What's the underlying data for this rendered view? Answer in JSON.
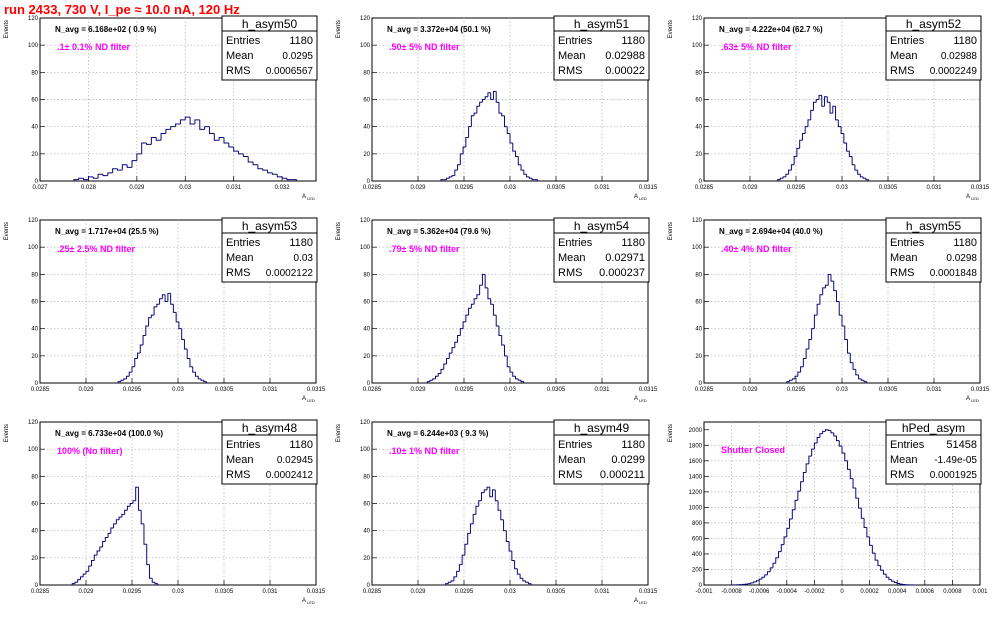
{
  "header": {
    "title": "run 2433,   730 V, I_pe ≈ 10.0 nA, 120 Hz",
    "title_color": "#ff0000"
  },
  "colors": {
    "hist": "#0a0a7a",
    "filter_label": "#ff00ff",
    "grid": "#b0b0b0"
  },
  "stat_labels": {
    "entries": "Entries",
    "mean": "Mean",
    "rms": "RMS"
  },
  "chart_data": [
    {
      "type": "histogram",
      "name": "h_asym50",
      "navg": "N_avg = 6.168e+02 ( 0.9 %)",
      "filter": ".1± 0.1% ND filter",
      "stats": {
        "entries": "1180",
        "mean": "0.0295",
        "rms": "0.0006567"
      },
      "xlabel": "A_LED",
      "ylabel": "Events",
      "xlim": [
        0.027,
        0.0327
      ],
      "ylim": [
        0,
        120
      ],
      "xticks": [
        "0.027",
        "0.028",
        "0.029",
        "0.03",
        "0.031",
        "0.032"
      ],
      "yticks": [
        "0",
        "20",
        "40",
        "60",
        "80",
        "100",
        "120"
      ],
      "grid": true,
      "legend": "top-right",
      "bins": {
        "start": 0.0277,
        "width": 0.0001,
        "values": [
          1,
          2,
          1,
          3,
          2,
          5,
          4,
          6,
          9,
          8,
          12,
          10,
          15,
          20,
          28,
          27,
          32,
          30,
          35,
          38,
          40,
          42,
          45,
          47,
          42,
          45,
          38,
          40,
          35,
          30,
          32,
          28,
          25,
          22,
          20,
          18,
          14,
          12,
          9,
          8,
          6,
          5,
          3,
          2,
          1,
          1
        ]
      }
    },
    {
      "type": "histogram",
      "name": "h_asym51",
      "navg": "N_avg = 3.372e+04 (50.1 %)",
      "filter": ".50± 5% ND filter",
      "stats": {
        "entries": "1180",
        "mean": "0.02988",
        "rms": "0.00022"
      },
      "xlabel": "A_LED",
      "ylabel": "Events",
      "xlim": [
        0.0285,
        0.0315
      ],
      "ylim": [
        0,
        120
      ],
      "xticks": [
        "0.0285",
        "0.029",
        "0.0295",
        "0.03",
        "0.0305",
        "0.031",
        "0.0315"
      ],
      "yticks": [
        "0",
        "20",
        "40",
        "60",
        "80",
        "100",
        "120"
      ],
      "grid": true,
      "legend": "top-right",
      "bins": {
        "start": 0.02925,
        "width": 3e-05,
        "values": [
          1,
          1,
          2,
          3,
          4,
          8,
          12,
          20,
          25,
          32,
          40,
          48,
          50,
          55,
          58,
          60,
          62,
          65,
          60,
          66,
          58,
          50,
          48,
          40,
          35,
          28,
          22,
          18,
          12,
          8,
          5,
          3,
          2,
          1,
          1
        ]
      }
    },
    {
      "type": "histogram",
      "name": "h_asym52",
      "navg": "N_avg = 4.222e+04 (62.7 %)",
      "filter": ".63± 5% ND filter",
      "stats": {
        "entries": "1180",
        "mean": "0.02988",
        "rms": "0.0002249"
      },
      "xlabel": "A_LED",
      "ylabel": "Events",
      "xlim": [
        0.0285,
        0.0315
      ],
      "ylim": [
        0,
        120
      ],
      "xticks": [
        "0.0285",
        "0.029",
        "0.0295",
        "0.03",
        "0.0305",
        "0.031",
        "0.0315"
      ],
      "yticks": [
        "0",
        "20",
        "40",
        "60",
        "80",
        "100",
        "120"
      ],
      "grid": true,
      "legend": "top-right",
      "bins": {
        "start": 0.0293,
        "width": 3e-05,
        "values": [
          1,
          2,
          3,
          5,
          8,
          12,
          18,
          24,
          30,
          35,
          40,
          45,
          52,
          58,
          60,
          63,
          55,
          62,
          58,
          50,
          55,
          45,
          40,
          35,
          28,
          22,
          18,
          12,
          8,
          5,
          3,
          2,
          1
        ]
      }
    },
    {
      "type": "histogram",
      "name": "h_asym53",
      "navg": "N_avg = 1.717e+04 (25.5 %)",
      "filter": ".25± 2.5% ND filter",
      "stats": {
        "entries": "1180",
        "mean": "0.03",
        "rms": "0.0002122"
      },
      "xlabel": "A_LED",
      "ylabel": "Events",
      "xlim": [
        0.0285,
        0.0315
      ],
      "ylim": [
        0,
        120
      ],
      "xticks": [
        "0.0285",
        "0.029",
        "0.0295",
        "0.03",
        "0.0305",
        "0.031",
        "0.0315"
      ],
      "yticks": [
        "0",
        "20",
        "40",
        "60",
        "80",
        "100",
        "120"
      ],
      "grid": true,
      "legend": "top-right",
      "bins": {
        "start": 0.02935,
        "width": 3e-05,
        "values": [
          1,
          2,
          3,
          5,
          8,
          12,
          18,
          22,
          28,
          35,
          42,
          48,
          50,
          56,
          58,
          62,
          65,
          60,
          66,
          58,
          52,
          45,
          40,
          32,
          25,
          18,
          12,
          8,
          5,
          3,
          2,
          1
        ]
      }
    },
    {
      "type": "histogram",
      "name": "h_asym54",
      "navg": "N_avg = 5.362e+04 (79.6 %)",
      "filter": ".79± 5% ND filter",
      "stats": {
        "entries": "1180",
        "mean": "0.02971",
        "rms": "0.000237"
      },
      "xlabel": "A_LED",
      "ylabel": "Events",
      "xlim": [
        0.0285,
        0.0315
      ],
      "ylim": [
        0,
        120
      ],
      "xticks": [
        "0.0285",
        "0.029",
        "0.0295",
        "0.03",
        "0.0305",
        "0.031",
        "0.0315"
      ],
      "yticks": [
        "0",
        "20",
        "40",
        "60",
        "80",
        "100",
        "120"
      ],
      "grid": true,
      "legend": "top-right",
      "bins": {
        "start": 0.0291,
        "width": 3e-05,
        "values": [
          1,
          2,
          3,
          5,
          7,
          10,
          14,
          18,
          22,
          26,
          30,
          35,
          40,
          45,
          50,
          55,
          58,
          62,
          65,
          72,
          80,
          70,
          62,
          58,
          50,
          42,
          35,
          28,
          20,
          12,
          8,
          5,
          3,
          2,
          1
        ]
      }
    },
    {
      "type": "histogram",
      "name": "h_asym55",
      "navg": "N_avg = 2.694e+04 (40.0 %)",
      "filter": ".40± 4% ND filter",
      "stats": {
        "entries": "1180",
        "mean": "0.0298",
        "rms": "0.0001848"
      },
      "xlabel": "A_LED",
      "ylabel": "Events",
      "xlim": [
        0.0285,
        0.0315
      ],
      "ylim": [
        0,
        120
      ],
      "xticks": [
        "0.0285",
        "0.029",
        "0.0295",
        "0.03",
        "0.0305",
        "0.031",
        "0.0315"
      ],
      "yticks": [
        "0",
        "20",
        "40",
        "60",
        "80",
        "100",
        "120"
      ],
      "grid": true,
      "legend": "top-right",
      "bins": {
        "start": 0.0294,
        "width": 3e-05,
        "values": [
          1,
          2,
          3,
          5,
          8,
          12,
          18,
          25,
          32,
          40,
          50,
          58,
          65,
          70,
          72,
          80,
          75,
          68,
          60,
          50,
          42,
          32,
          22,
          15,
          10,
          6,
          3,
          2,
          1
        ]
      }
    },
    {
      "type": "histogram",
      "name": "h_asym48",
      "navg": "N_avg = 6.733e+04 (100.0 %)",
      "filter": "100% (No filter)",
      "stats": {
        "entries": "1180",
        "mean": "0.02945",
        "rms": "0.0002412"
      },
      "xlabel": "A_LED",
      "ylabel": "Events",
      "xlim": [
        0.0285,
        0.0315
      ],
      "ylim": [
        0,
        120
      ],
      "xticks": [
        "0.0285",
        "0.029",
        "0.0295",
        "0.03",
        "0.0305",
        "0.031",
        "0.0315"
      ],
      "yticks": [
        "0",
        "20",
        "40",
        "60",
        "80",
        "100",
        "120"
      ],
      "grid": true,
      "legend": "top-right",
      "bins": {
        "start": 0.02885,
        "width": 3e-05,
        "values": [
          1,
          2,
          4,
          6,
          8,
          10,
          14,
          18,
          22,
          25,
          28,
          32,
          35,
          38,
          42,
          45,
          48,
          50,
          52,
          55,
          58,
          60,
          62,
          72,
          55,
          45,
          30,
          15,
          5,
          2,
          1
        ]
      }
    },
    {
      "type": "histogram",
      "name": "h_asym49",
      "navg": "N_avg = 6.244e+03 ( 9.3 %)",
      "filter": ".10± 1% ND filter",
      "stats": {
        "entries": "1180",
        "mean": "0.0299",
        "rms": "0.000211"
      },
      "xlabel": "A_LED",
      "ylabel": "Events",
      "xlim": [
        0.0285,
        0.0315
      ],
      "ylim": [
        0,
        120
      ],
      "xticks": [
        "0.0285",
        "0.029",
        "0.0295",
        "0.03",
        "0.0305",
        "0.031",
        "0.0315"
      ],
      "yticks": [
        "0",
        "20",
        "40",
        "60",
        "80",
        "100",
        "120"
      ],
      "grid": true,
      "legend": "top-right",
      "bins": {
        "start": 0.0293,
        "width": 3e-05,
        "values": [
          1,
          2,
          3,
          6,
          10,
          15,
          22,
          30,
          38,
          45,
          52,
          58,
          62,
          68,
          70,
          72,
          65,
          70,
          62,
          55,
          48,
          40,
          32,
          25,
          18,
          12,
          8,
          5,
          3,
          2,
          1
        ]
      }
    },
    {
      "type": "histogram",
      "name": "hPed_asym",
      "navg": "",
      "filter": "Shutter Closed",
      "stats": {
        "entries": "51458",
        "mean": "-1.49e-05",
        "rms": "0.0001925"
      },
      "xlabel": "",
      "ylabel": "Events",
      "xlim": [
        -0.001,
        0.001
      ],
      "ylim": [
        0,
        2100
      ],
      "xticks": [
        "-0.001",
        "-0.0008",
        "-0.0006",
        "-0.0004",
        "-0.0002",
        "0",
        "0.0002",
        "0.0004",
        "0.0006",
        "0.0008",
        "0.001"
      ],
      "yticks": [
        "0",
        "200",
        "400",
        "600",
        "800",
        "1000",
        "1200",
        "1400",
        "1600",
        "1800",
        "2000"
      ],
      "grid": true,
      "legend": "top-right",
      "bins": {
        "start": -0.0008,
        "width": 2e-05,
        "values": [
          1,
          2,
          3,
          5,
          8,
          12,
          18,
          28,
          40,
          55,
          75,
          100,
          130,
          170,
          220,
          280,
          350,
          430,
          520,
          620,
          730,
          850,
          970,
          1090,
          1210,
          1330,
          1450,
          1560,
          1660,
          1750,
          1830,
          1900,
          1950,
          1980,
          2000,
          1990,
          1960,
          1920,
          1860,
          1790,
          1700,
          1600,
          1490,
          1370,
          1250,
          1120,
          990,
          860,
          740,
          620,
          510,
          410,
          320,
          250,
          190,
          140,
          100,
          70,
          48,
          32,
          20,
          12,
          7,
          4,
          2,
          1
        ]
      }
    }
  ]
}
